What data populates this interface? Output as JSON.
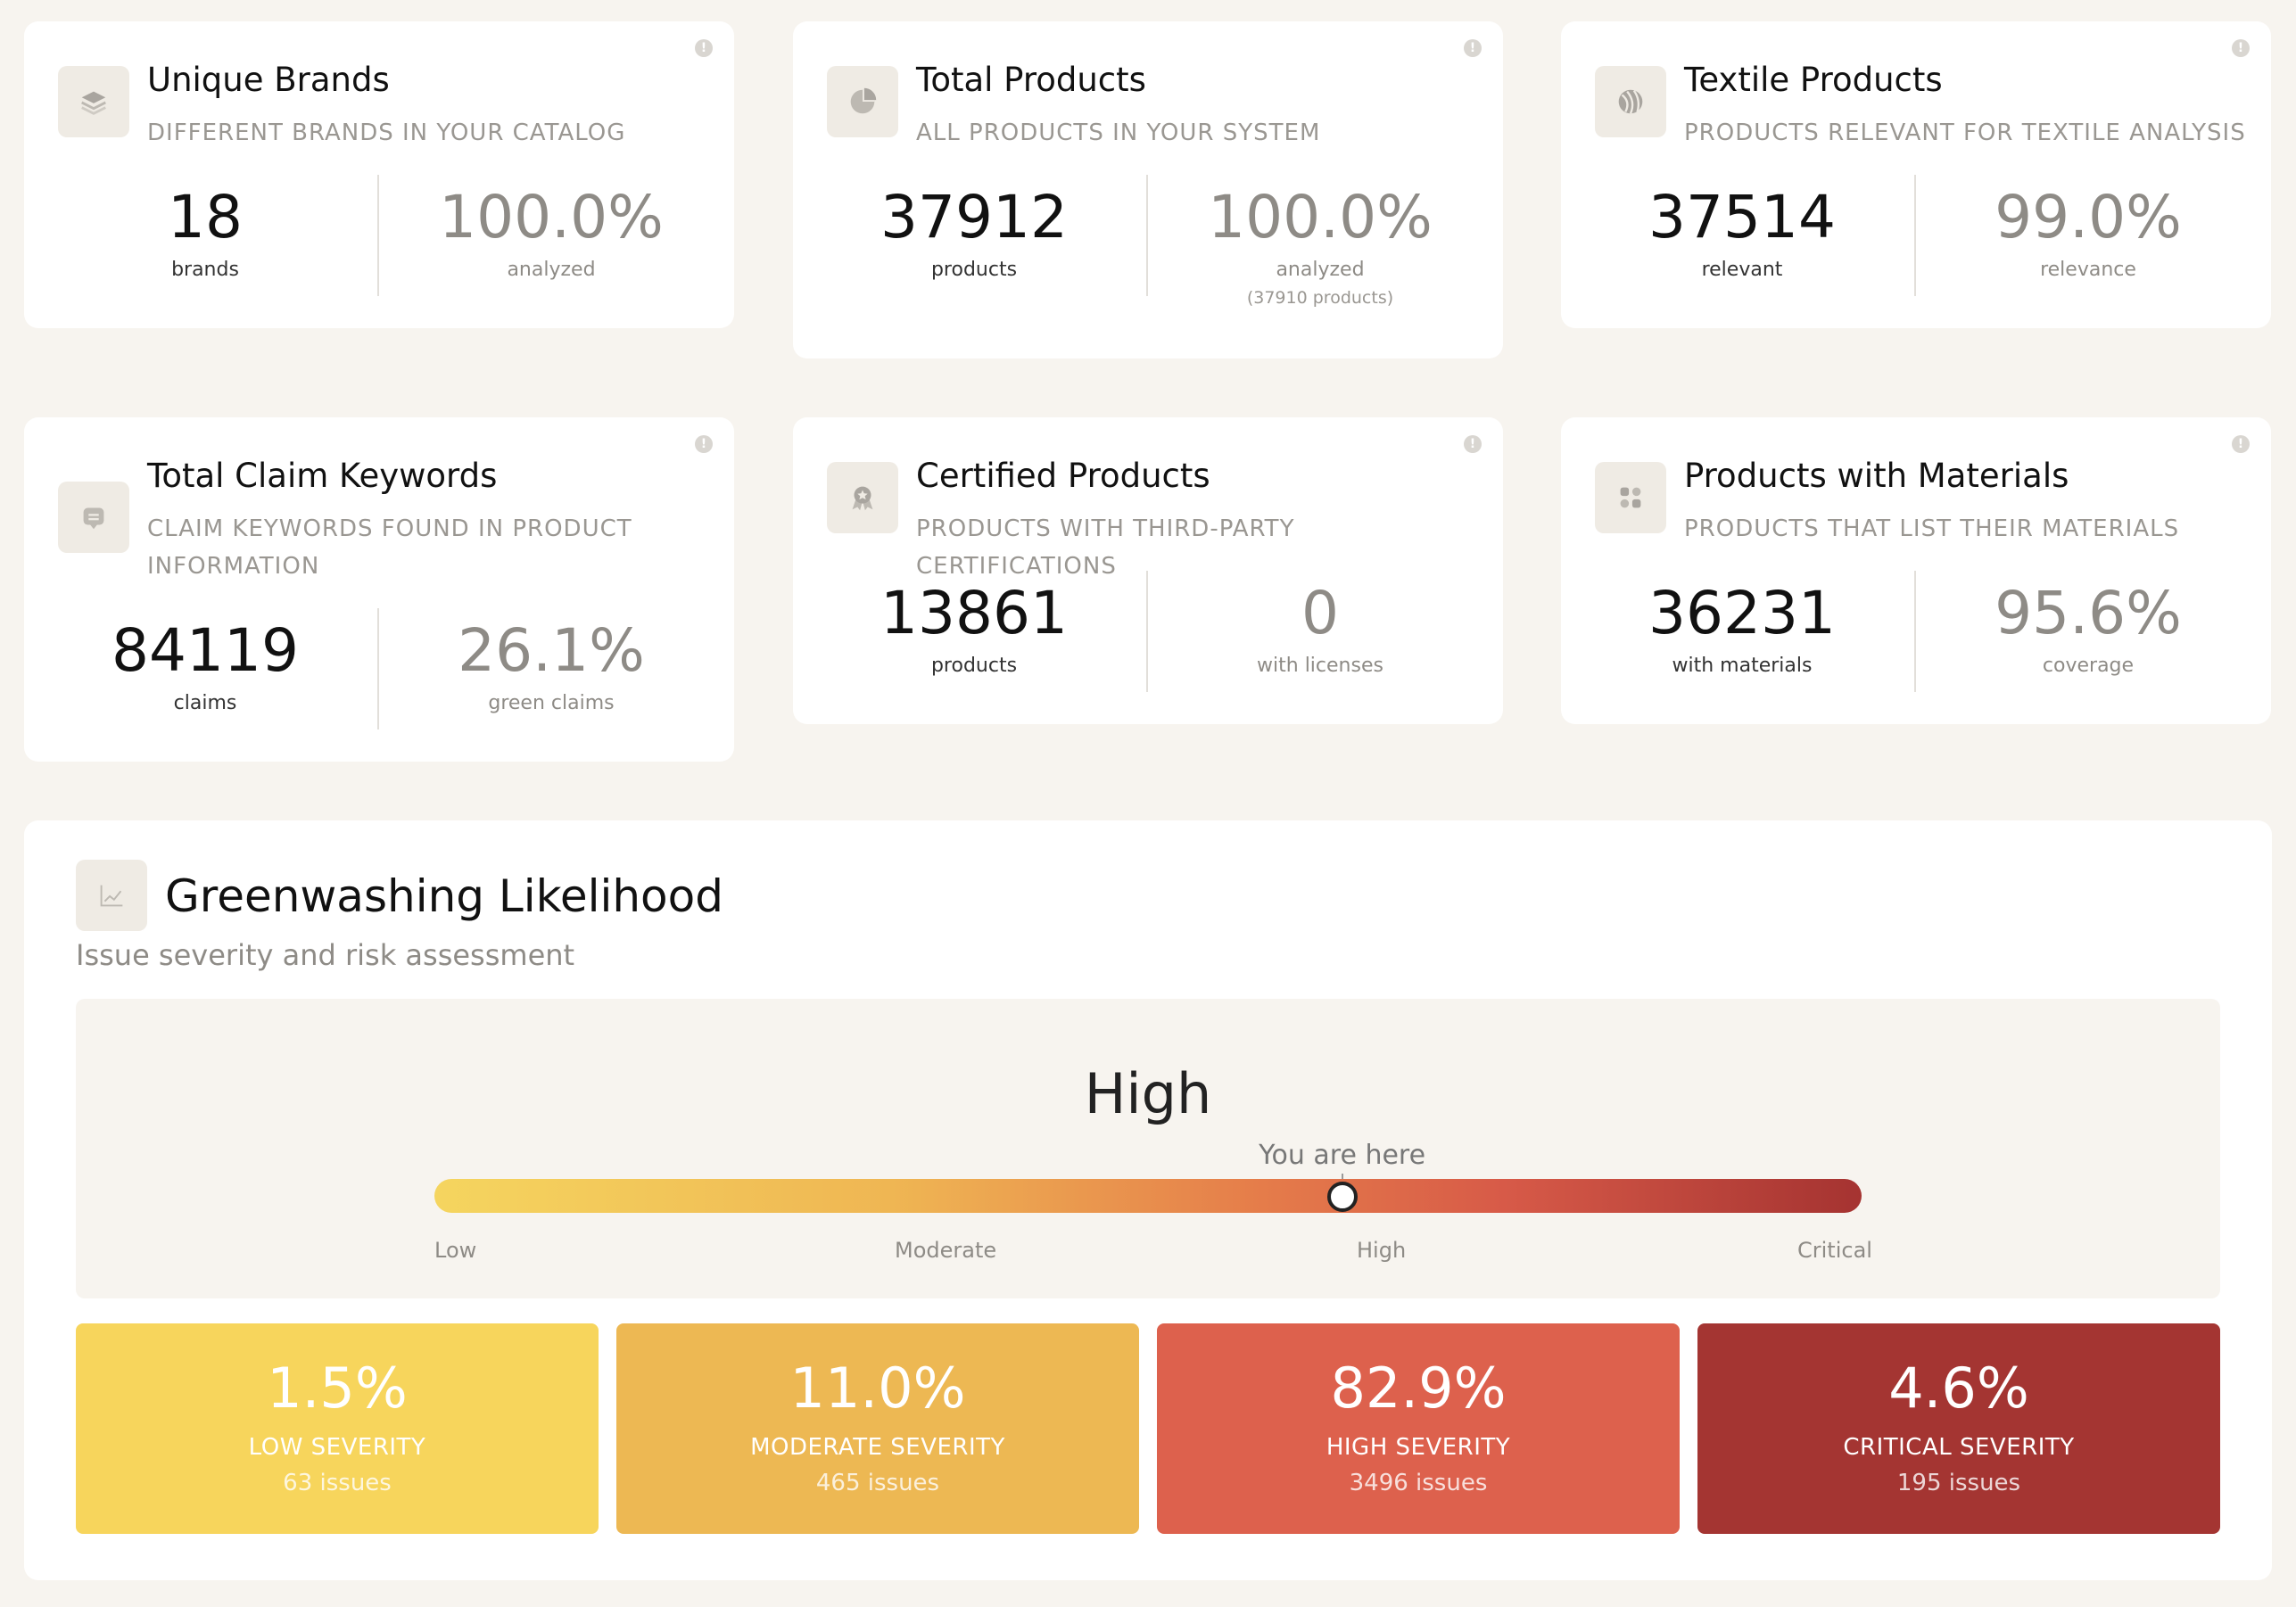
{
  "cards": [
    {
      "title": "Unique Brands",
      "subtitle": "DIFFERENT BRANDS IN YOUR CATALOG",
      "icon": "layers-icon",
      "left_value": "18",
      "left_label": "brands",
      "right_value": "100.0%",
      "right_label": "analyzed"
    },
    {
      "title": "Total Products",
      "subtitle": "ALL PRODUCTS IN YOUR SYSTEM",
      "icon": "pie-chart-icon",
      "left_value": "37912",
      "left_label": "products",
      "right_value": "100.0%",
      "right_label": "analyzed",
      "right_extra": "(37910 products)"
    },
    {
      "title": "Textile Products",
      "subtitle": "PRODUCTS RELEVANT FOR TEXTILE ANALYSIS",
      "icon": "yarn-icon",
      "left_value": "37514",
      "left_label": "relevant",
      "right_value": "99.0%",
      "right_label": "relevance"
    },
    {
      "title": "Total Claim Keywords",
      "subtitle": "CLAIM KEYWORDS FOUND IN PRODUCT INFORMATION",
      "icon": "message-icon",
      "left_value": "84119",
      "left_label": "claims",
      "right_value": "26.1%",
      "right_label": "green claims"
    },
    {
      "title": "Certified Products",
      "subtitle": "PRODUCTS WITH THIRD-PARTY CERTIFICATIONS",
      "icon": "award-icon",
      "left_value": "13861",
      "left_label": "products",
      "right_value": "0",
      "right_label": "with licenses"
    },
    {
      "title": "Products with Materials",
      "subtitle": "PRODUCTS THAT LIST THEIR MATERIALS",
      "icon": "grid-icon",
      "left_value": "36231",
      "left_label": "with materials",
      "right_value": "95.6%",
      "right_label": "coverage"
    }
  ],
  "info_glyph": "!",
  "greenwashing": {
    "title": "Greenwashing Likelihood",
    "subtitle": "Issue severity and risk assessment",
    "icon": "line-chart-icon",
    "level": "High",
    "marker_label": "You are here",
    "marker_fraction": 0.636,
    "scale_labels": [
      "Low",
      "Moderate",
      "High",
      "Critical"
    ],
    "severities": [
      {
        "pct": "1.5%",
        "name": "LOW SEVERITY",
        "issues": "63 issues",
        "color": "#f7d55c"
      },
      {
        "pct": "11.0%",
        "name": "MODERATE SEVERITY",
        "issues": "465 issues",
        "color": "#edb853"
      },
      {
        "pct": "82.9%",
        "name": "HIGH SEVERITY",
        "issues": "3496 issues",
        "color": "#dd614d"
      },
      {
        "pct": "4.6%",
        "name": "CRITICAL SEVERITY",
        "issues": "195 issues",
        "color": "#a43532"
      }
    ]
  }
}
